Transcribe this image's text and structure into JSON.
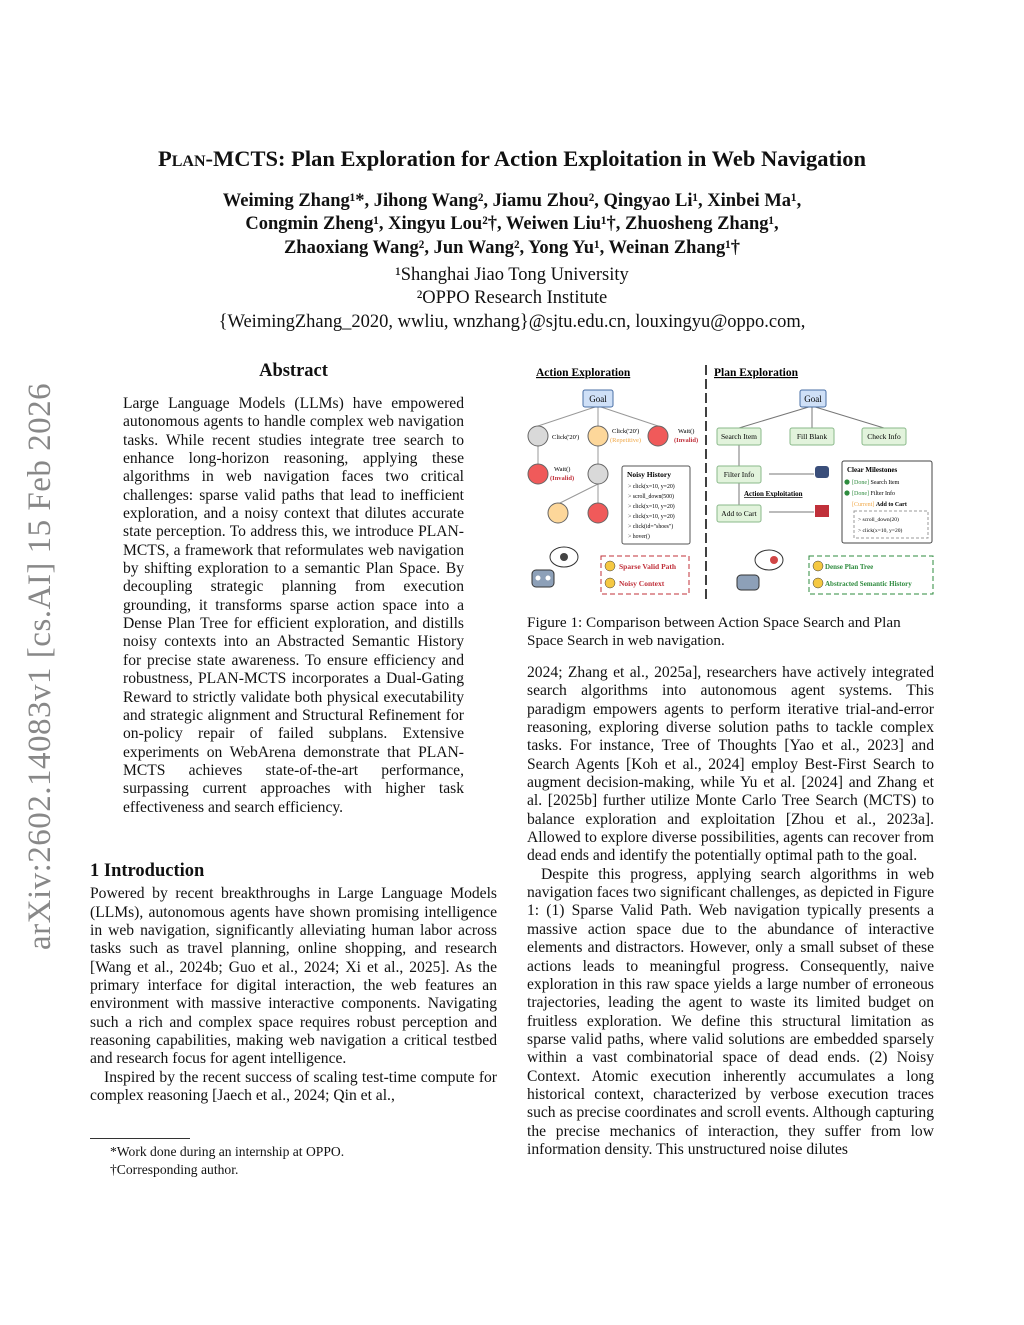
{
  "sidebar_id": "arXiv:2602.14083v1  [cs.AI]  15 Feb 2026",
  "title_prefix": "Plan",
  "title_rest": "-MCTS: Plan Exploration for Action Exploitation in Web Navigation",
  "authors": [
    "Weiming Zhang¹*, Jihong Wang², Jiamu Zhou², Qingyao Li¹, Xinbei Ma¹,",
    "Congmin Zheng¹, Xingyu Lou²†, Weiwen Liu¹†, Zhuosheng Zhang¹,",
    "Zhaoxiang Wang², Jun Wang², Yong Yu¹, Weinan Zhang¹†"
  ],
  "affiliations": [
    "¹Shanghai Jiao Tong University",
    "²OPPO Research Institute",
    "{WeimingZhang_2020, wwliu, wnzhang}@sjtu.edu.cn, louxingyu@oppo.com,"
  ],
  "abstract_heading": "Abstract",
  "abstract": "Large Language Models (LLMs) have empowered autonomous agents to handle complex web navigation tasks. While recent studies integrate tree search to enhance long-horizon reasoning, applying these algorithms in web navigation faces two critical challenges: sparse valid paths that lead to inefficient exploration, and a noisy context that dilutes accurate state perception. To address this, we introduce PLAN-MCTS, a framework that reformulates web navigation by shifting exploration to a semantic Plan Space. By decoupling strategic planning from execution grounding, it transforms sparse action space into a Dense Plan Tree for efficient exploration, and distills noisy contexts into an Abstracted Semantic History for precise state awareness. To ensure efficiency and robustness, PLAN-MCTS incorporates a Dual-Gating Reward to strictly validate both physical executability and strategic alignment and Structural Refinement for on-policy repair of failed subplans. Extensive experiments on WebArena demonstrate that PLAN-MCTS achieves state-of-the-art performance, surpassing current approaches with higher task effectiveness and search efficiency.",
  "intro_heading": "1    Introduction",
  "intro_paragraphs": [
    "Powered by recent breakthroughs in Large Language Models (LLMs), autonomous agents have shown promising intelligence in web navigation, significantly alleviating human labor across tasks such as travel planning, online shopping, and research [Wang et al., 2024b; Guo et al., 2024; Xi et al., 2025]. As the primary interface for digital interaction, the web features an environment with massive interactive components. Navigating such a rich and complex space requires robust perception and reasoning capabilities, making web navigation a critical testbed and research focus for agent intelligence.",
    "Inspired by the recent success of scaling test-time compute for complex reasoning [Jaech et al., 2024; Qin et al.,"
  ],
  "footnotes": [
    "*Work done during an internship at OPPO.",
    "†Corresponding author."
  ],
  "figure": {
    "left_title": "Action Exploration",
    "right_title": "Plan Exploration",
    "goal": "Goal",
    "left_labels": [
      "Click('20')",
      "Click('20')",
      "(Repetitive)",
      "Wait()",
      "(Invalid)",
      "Wait()",
      "(Invalid)"
    ],
    "noisy_title": "Noisy History",
    "noisy_items": [
      "> click(x=10, y=20)",
      "> scroll_down(500)",
      "> click(x=10, y=20)",
      "> click(x=10, y=20)",
      "> click(id=\"shoes\")",
      "> hover()"
    ],
    "left_cons": [
      "Sparse Valid Path",
      "Noisy Context"
    ],
    "plan_nodes": [
      "Search Item",
      "Fill Blank",
      "Check Info",
      "Filter Info",
      "Add to Cart"
    ],
    "action_exploitation": "Action Exploitation",
    "milestones_title": "Clear Milestones",
    "milestones": [
      {
        "tag": "[Done]",
        "text": "Search Item"
      },
      {
        "tag": "[Done]",
        "text": "Filter Info"
      },
      {
        "tag": "[Current]",
        "text": "Add to Cart"
      }
    ],
    "milestone_actions": [
      "> scroll_down(20)",
      "> click(x=10, y=20)"
    ],
    "right_pros": [
      "Dense Plan Tree",
      "Abstracted Semantic History"
    ],
    "colors": {
      "grey": "#d9d9d9",
      "orange": "#fdd79a",
      "red": "#f05a5a",
      "blue": "#cfe0f7",
      "green": "#e2f3dc",
      "red_text": "#c0303a",
      "green_text": "#2e8b3e",
      "orange_text": "#f0a848"
    }
  },
  "caption": "Figure 1: Comparison between Action Space Search and Plan Space Search in web navigation.",
  "right_paragraphs": [
    "2024; Zhang et al., 2025a], researchers have actively integrated search algorithms into autonomous agent systems. This paradigm empowers agents to perform iterative trial-and-error reasoning, exploring diverse solution paths to tackle complex tasks. For instance, Tree of Thoughts [Yao et al., 2023] and Search Agents [Koh et al., 2024] employ Best-First Search to augment decision-making, while Yu et al. [2024] and Zhang et al. [2025b] further utilize Monte Carlo Tree Search (MCTS) to balance exploration and exploitation [Zhou et al., 2023a]. Allowed to explore diverse possibilities, agents can recover from dead ends and identify the potentially optimal path to the goal.",
    "Despite this progress, applying search algorithms in web navigation faces two significant challenges, as depicted in Figure 1: (1) Sparse Valid Path. Web navigation typically presents a massive action space due to the abundance of interactive elements and distractors. However, only a small subset of these actions leads to meaningful progress. Consequently, naive exploration in this raw space yields a large number of erroneous trajectories, leading the agent to waste its limited budget on fruitless exploration. We define this structural limitation as sparse valid paths, where valid solutions are embedded sparsely within a vast combinatorial space of dead ends. (2) Noisy Context. Atomic execution inherently accumulates a long historical context, characterized by verbose execution traces such as precise coordinates and scroll events. Although capturing the precise mechanics of interaction, they suffer from low information density. This unstructured noise dilutes"
  ]
}
